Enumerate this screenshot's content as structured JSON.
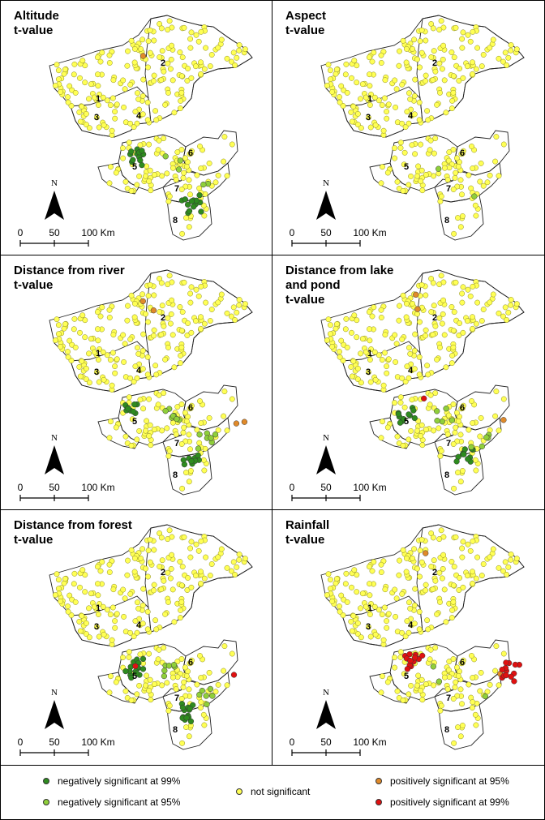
{
  "panels": [
    {
      "title": "Altitude\nt-value",
      "region_labels": [
        "1",
        "2",
        "3",
        "4",
        "5",
        "6",
        "7",
        "8"
      ],
      "scale_labels": [
        "0",
        "50",
        "100 Km"
      ],
      "north_label": "N",
      "highlights": {
        "green_dark": 26,
        "green_light": 5,
        "orange": 1,
        "red": 0
      }
    },
    {
      "title": "Aspect\nt-value",
      "region_labels": [
        "1",
        "2",
        "3",
        "4",
        "5",
        "6",
        "7",
        "8"
      ],
      "scale_labels": [
        "0",
        "50",
        "100 Km"
      ],
      "north_label": "N",
      "highlights": {
        "green_dark": 0,
        "green_light": 2,
        "orange": 0,
        "red": 0
      }
    },
    {
      "title": "Distance from river\nt-value",
      "region_labels": [
        "1",
        "2",
        "3",
        "4",
        "5",
        "6",
        "7",
        "8"
      ],
      "scale_labels": [
        "0",
        "50",
        "100 Km"
      ],
      "north_label": "N",
      "highlights": {
        "green_dark": 18,
        "green_light": 14,
        "orange": 4,
        "red": 0
      }
    },
    {
      "title": "Distance from lake\nand pond\nt-value",
      "region_labels": [
        "1",
        "2",
        "3",
        "4",
        "5",
        "6",
        "7",
        "8"
      ],
      "scale_labels": [
        "0",
        "50",
        "100 Km"
      ],
      "north_label": "N",
      "highlights": {
        "green_dark": 22,
        "green_light": 10,
        "orange": 3,
        "red": 1
      }
    },
    {
      "title": "Distance from forest\nt-value",
      "region_labels": [
        "1",
        "2",
        "3",
        "4",
        "5",
        "6",
        "7",
        "8"
      ],
      "scale_labels": [
        "0",
        "50",
        "100 Km"
      ],
      "north_label": "N",
      "highlights": {
        "green_dark": 30,
        "green_light": 12,
        "orange": 0,
        "red": 2
      }
    },
    {
      "title": "Rainfall\nt-value",
      "region_labels": [
        "1",
        "2",
        "3",
        "4",
        "5",
        "6",
        "7",
        "8"
      ],
      "scale_labels": [
        "0",
        "50",
        "100 Km"
      ],
      "north_label": "N",
      "highlights": {
        "green_dark": 0,
        "green_light": 3,
        "orange": 2,
        "red": 26
      }
    }
  ],
  "legend": {
    "neg99": "negatively significant at 99%",
    "neg95": "negatively significant at 95%",
    "not_sig": "not significant",
    "pos95": "positively significant at 95%",
    "pos99": "positively significant at 99%"
  },
  "colors": {
    "neg99": "#2e8b1f",
    "neg95": "#8fcf3a",
    "not_sig": "#ffff55",
    "pos95": "#e08a2a",
    "pos99": "#e01010"
  }
}
